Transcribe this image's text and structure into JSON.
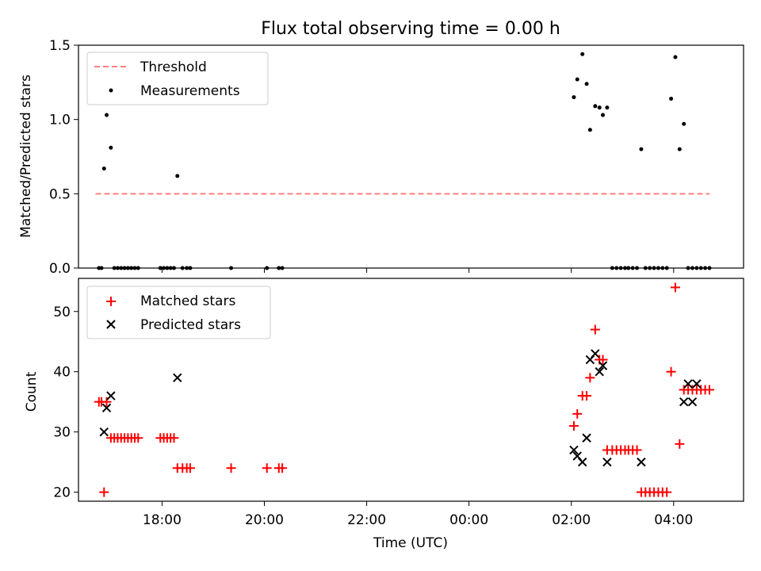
{
  "chart_data": [
    {
      "type": "scatter",
      "title": "Flux total observing time = 0.00 h",
      "xlabel": "",
      "ylabel": "Matched/Predicted stars",
      "xlim": [
        "16:22",
        "05:22"
      ],
      "ylim": [
        0,
        1.5
      ],
      "y_ticks": [
        0.0,
        0.5,
        1.0,
        1.5
      ],
      "y_tick_labels": [
        "0.0",
        "0.5",
        "1.0",
        "1.5"
      ],
      "grid": false,
      "legend_position": "upper-left",
      "series": [
        {
          "name": "Threshold",
          "kind": "line",
          "style": "dashed",
          "color": "#ff7f7f",
          "x": [
            "16:42",
            "04:42"
          ],
          "y": [
            0.5,
            0.5
          ]
        },
        {
          "name": "Measurements",
          "kind": "scatter",
          "marker": "dot",
          "color": "#000000",
          "x": [
            "16:46",
            "16:49",
            "16:52",
            "16:55",
            "17:00",
            "17:04",
            "17:08",
            "17:12",
            "17:16",
            "17:20",
            "17:24",
            "17:28",
            "17:32",
            "17:58",
            "18:02",
            "18:06",
            "18:10",
            "18:14",
            "18:18",
            "18:24",
            "18:29",
            "18:33",
            "19:21",
            "20:03",
            "20:17",
            "20:21",
            "02:03",
            "02:07",
            "02:13",
            "02:18",
            "02:22",
            "02:28",
            "02:33",
            "02:37",
            "02:42",
            "02:48",
            "02:53",
            "02:58",
            "03:03",
            "03:07",
            "03:12",
            "03:17",
            "03:22",
            "03:27",
            "03:32",
            "03:37",
            "03:42",
            "03:47",
            "03:52",
            "03:57",
            "04:02",
            "04:07",
            "04:12",
            "04:17",
            "04:22",
            "04:27",
            "04:32",
            "04:37",
            "04:42"
          ],
          "y": [
            0,
            0,
            0.67,
            1.03,
            0.81,
            0,
            0,
            0,
            0,
            0,
            0,
            0,
            0,
            0,
            0,
            0,
            0,
            0,
            0.62,
            0,
            0,
            0,
            0,
            0,
            0,
            0,
            1.15,
            1.27,
            1.44,
            1.24,
            0.93,
            1.09,
            1.08,
            1.03,
            1.08,
            0,
            0,
            0,
            0,
            0,
            0,
            0,
            0.8,
            0,
            0,
            0,
            0,
            0,
            0,
            1.14,
            1.42,
            0.8,
            0.97,
            0,
            0,
            0,
            0,
            0,
            0
          ]
        }
      ]
    },
    {
      "type": "scatter",
      "title": "",
      "xlabel": "Time (UTC)",
      "ylabel": "Count",
      "xlim": [
        "16:22",
        "05:22"
      ],
      "ylim": [
        18.5,
        55.5
      ],
      "x_ticks": [
        "18:00",
        "20:00",
        "22:00",
        "00:00",
        "02:00",
        "04:00"
      ],
      "y_ticks": [
        20,
        30,
        40,
        50
      ],
      "y_tick_labels": [
        "20",
        "30",
        "40",
        "50"
      ],
      "grid": false,
      "legend_position": "upper-left",
      "series": [
        {
          "name": "Matched stars",
          "kind": "scatter",
          "marker": "plus",
          "color": "#ff0000",
          "x": [
            "16:46",
            "16:49",
            "16:52",
            "16:55",
            "17:00",
            "17:04",
            "17:08",
            "17:12",
            "17:16",
            "17:20",
            "17:24",
            "17:28",
            "17:32",
            "17:58",
            "18:02",
            "18:06",
            "18:10",
            "18:14",
            "18:18",
            "18:24",
            "18:29",
            "18:33",
            "19:21",
            "20:03",
            "20:17",
            "20:21",
            "02:03",
            "02:07",
            "02:13",
            "02:18",
            "02:22",
            "02:28",
            "02:33",
            "02:37",
            "02:42",
            "02:48",
            "02:53",
            "02:58",
            "03:03",
            "03:07",
            "03:12",
            "03:17",
            "03:22",
            "03:27",
            "03:32",
            "03:37",
            "03:42",
            "03:47",
            "03:52",
            "03:57",
            "04:02",
            "04:07",
            "04:12",
            "04:17",
            "04:22",
            "04:27",
            "04:32",
            "04:37",
            "04:42"
          ],
          "y": [
            35,
            35,
            20,
            35,
            29,
            29,
            29,
            29,
            29,
            29,
            29,
            29,
            29,
            29,
            29,
            29,
            29,
            29,
            24,
            24,
            24,
            24,
            24,
            24,
            24,
            24,
            31,
            33,
            36,
            36,
            39,
            47,
            42,
            42,
            27,
            27,
            27,
            27,
            27,
            27,
            27,
            27,
            20,
            20,
            20,
            20,
            20,
            20,
            20,
            40,
            54,
            28,
            37,
            37,
            37,
            37,
            37,
            37,
            37
          ]
        },
        {
          "name": "Predicted stars",
          "kind": "scatter",
          "marker": "x",
          "color": "#000000",
          "x": [
            "16:52",
            "16:55",
            "17:00",
            "18:18",
            "02:03",
            "02:07",
            "02:13",
            "02:18",
            "02:22",
            "02:28",
            "02:33",
            "02:37",
            "02:42",
            "03:22",
            "04:12",
            "04:17",
            "04:22",
            "04:27"
          ],
          "y": [
            30,
            34,
            36,
            39,
            27,
            26,
            25,
            29,
            42,
            43,
            40,
            41,
            25,
            25,
            35,
            38,
            35,
            38
          ]
        }
      ]
    }
  ]
}
